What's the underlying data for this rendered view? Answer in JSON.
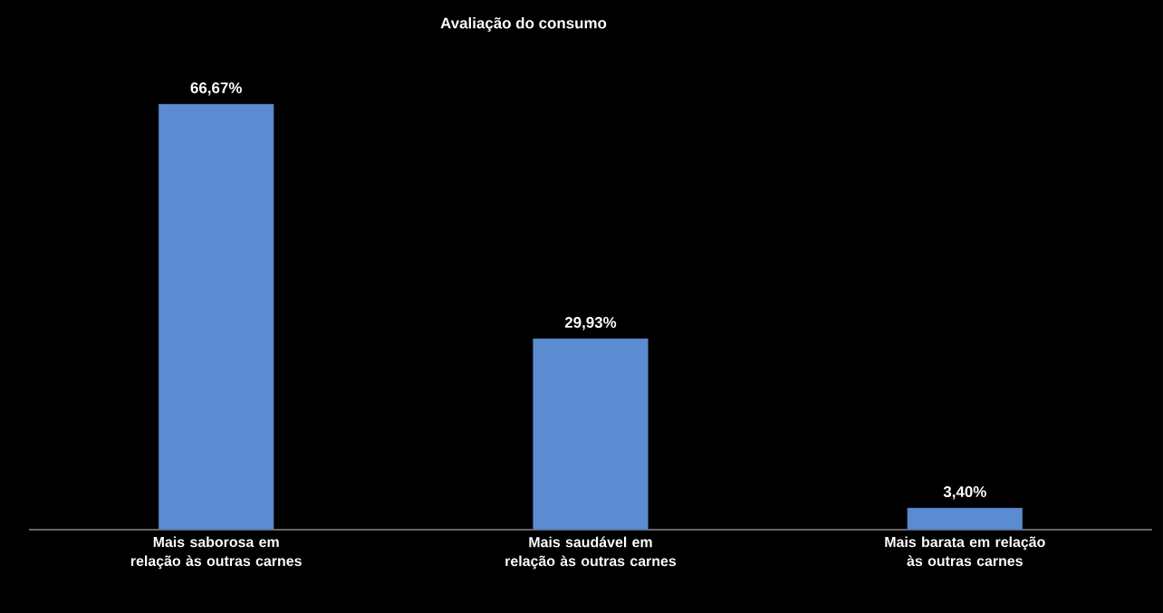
{
  "chart_data": {
    "type": "bar",
    "title": "Avaliação do consumo",
    "categories": [
      "Mais saborosa em relação às outras carnes",
      "Mais saudável em relação às outras carnes",
      "Mais barata em relação às outras carnes"
    ],
    "values": [
      66.67,
      29.93,
      3.4
    ],
    "value_labels": [
      "66,67%",
      "29,93%",
      "3,40%"
    ],
    "color": "#5b8bd0"
  }
}
